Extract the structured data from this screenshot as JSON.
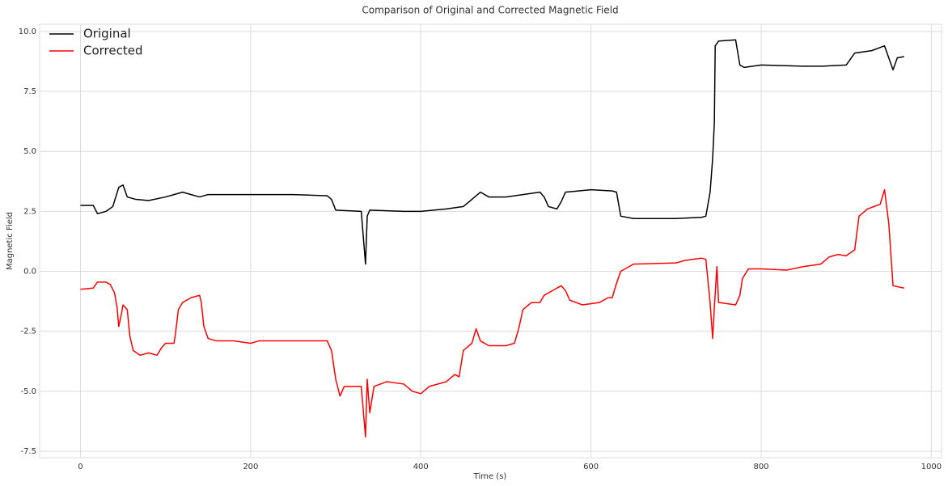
{
  "chart_data": {
    "type": "line",
    "title": "Comparison of Original and Corrected Magnetic Field",
    "xlabel": "Time (s)",
    "ylabel": "Magnetic Field",
    "xlim": [
      -48,
      1012
    ],
    "ylim": [
      -7.77,
      10.3
    ],
    "xticks": [
      0,
      200,
      400,
      600,
      800,
      1000
    ],
    "yticks": [
      {
        "value": 10,
        "label": "10.0"
      },
      7.5,
      {
        "value": 5,
        "label": "5.0"
      },
      2.5,
      {
        "value": 0,
        "label": "0.0"
      },
      -2.5,
      {
        "value": -5,
        "label": "-5.0"
      },
      -7.5
    ],
    "grid": true,
    "legend": "upper left",
    "series": [
      {
        "name": "Original",
        "color": "#000000",
        "x": [
          0,
          15,
          20,
          30,
          38,
          45,
          50,
          55,
          65,
          80,
          100,
          110,
          120,
          130,
          140,
          150,
          170,
          200,
          250,
          290,
          295,
          300,
          330,
          335,
          337,
          340,
          380,
          400,
          430,
          450,
          460,
          470,
          480,
          500,
          520,
          540,
          545,
          550,
          560,
          565,
          570,
          600,
          625,
          630,
          635,
          650,
          700,
          730,
          735,
          740,
          743,
          745,
          746,
          750,
          770,
          775,
          780,
          800,
          850,
          870,
          900,
          910,
          930,
          945,
          955,
          960,
          968
        ],
        "values": [
          2.75,
          2.75,
          2.4,
          2.5,
          2.7,
          3.5,
          3.6,
          3.1,
          3.0,
          2.95,
          3.1,
          3.2,
          3.3,
          3.2,
          3.1,
          3.2,
          3.2,
          3.2,
          3.2,
          3.15,
          3.0,
          2.55,
          2.5,
          0.3,
          2.3,
          2.55,
          2.5,
          2.5,
          2.6,
          2.7,
          3.0,
          3.3,
          3.1,
          3.1,
          3.2,
          3.3,
          3.1,
          2.7,
          2.6,
          2.9,
          3.3,
          3.4,
          3.35,
          3.3,
          2.3,
          2.2,
          2.2,
          2.25,
          2.3,
          3.3,
          4.7,
          6.2,
          9.4,
          9.6,
          9.65,
          8.6,
          8.5,
          8.6,
          8.55,
          8.55,
          8.6,
          9.1,
          9.2,
          9.4,
          8.4,
          8.9,
          8.95
        ]
      },
      {
        "name": "Corrected",
        "color": "#ff0000",
        "x": [
          0,
          15,
          20,
          30,
          35,
          40,
          43,
          45,
          48,
          50,
          55,
          58,
          62,
          70,
          80,
          90,
          95,
          100,
          110,
          112,
          115,
          120,
          130,
          140,
          142,
          145,
          150,
          160,
          180,
          200,
          210,
          250,
          290,
          295,
          300,
          305,
          310,
          330,
          335,
          337,
          340,
          345,
          360,
          380,
          390,
          400,
          410,
          430,
          440,
          445,
          450,
          460,
          465,
          470,
          480,
          500,
          510,
          515,
          520,
          530,
          540,
          545,
          555,
          565,
          570,
          575,
          590,
          610,
          620,
          625,
          630,
          635,
          650,
          700,
          710,
          730,
          735,
          740,
          743,
          745,
          748,
          750,
          770,
          775,
          778,
          785,
          800,
          830,
          850,
          870,
          880,
          890,
          900,
          910,
          915,
          925,
          940,
          945,
          950,
          955,
          968
        ],
        "values": [
          -0.75,
          -0.7,
          -0.45,
          -0.45,
          -0.55,
          -0.9,
          -1.5,
          -2.3,
          -1.8,
          -1.4,
          -1.6,
          -2.7,
          -3.3,
          -3.5,
          -3.4,
          -3.5,
          -3.2,
          -3.0,
          -3.0,
          -2.5,
          -1.6,
          -1.3,
          -1.1,
          -1.0,
          -1.3,
          -2.3,
          -2.8,
          -2.9,
          -2.9,
          -3.0,
          -2.9,
          -2.9,
          -2.9,
          -3.3,
          -4.5,
          -5.2,
          -4.8,
          -4.8,
          -6.9,
          -4.5,
          -5.9,
          -4.8,
          -4.6,
          -4.7,
          -5.0,
          -5.1,
          -4.8,
          -4.6,
          -4.3,
          -4.4,
          -3.3,
          -3.0,
          -2.4,
          -2.9,
          -3.1,
          -3.1,
          -3.0,
          -2.4,
          -1.6,
          -1.3,
          -1.3,
          -1.0,
          -0.8,
          -0.6,
          -0.8,
          -1.2,
          -1.4,
          -1.3,
          -1.1,
          -1.1,
          -0.5,
          0.0,
          0.3,
          0.35,
          0.45,
          0.55,
          0.5,
          -1.3,
          -2.8,
          -1.5,
          0.2,
          -1.3,
          -1.4,
          -1.0,
          -0.3,
          0.1,
          0.1,
          0.05,
          0.2,
          0.3,
          0.6,
          0.7,
          0.65,
          0.9,
          2.3,
          2.6,
          2.8,
          3.4,
          2.0,
          -0.6,
          -0.7
        ]
      }
    ]
  }
}
